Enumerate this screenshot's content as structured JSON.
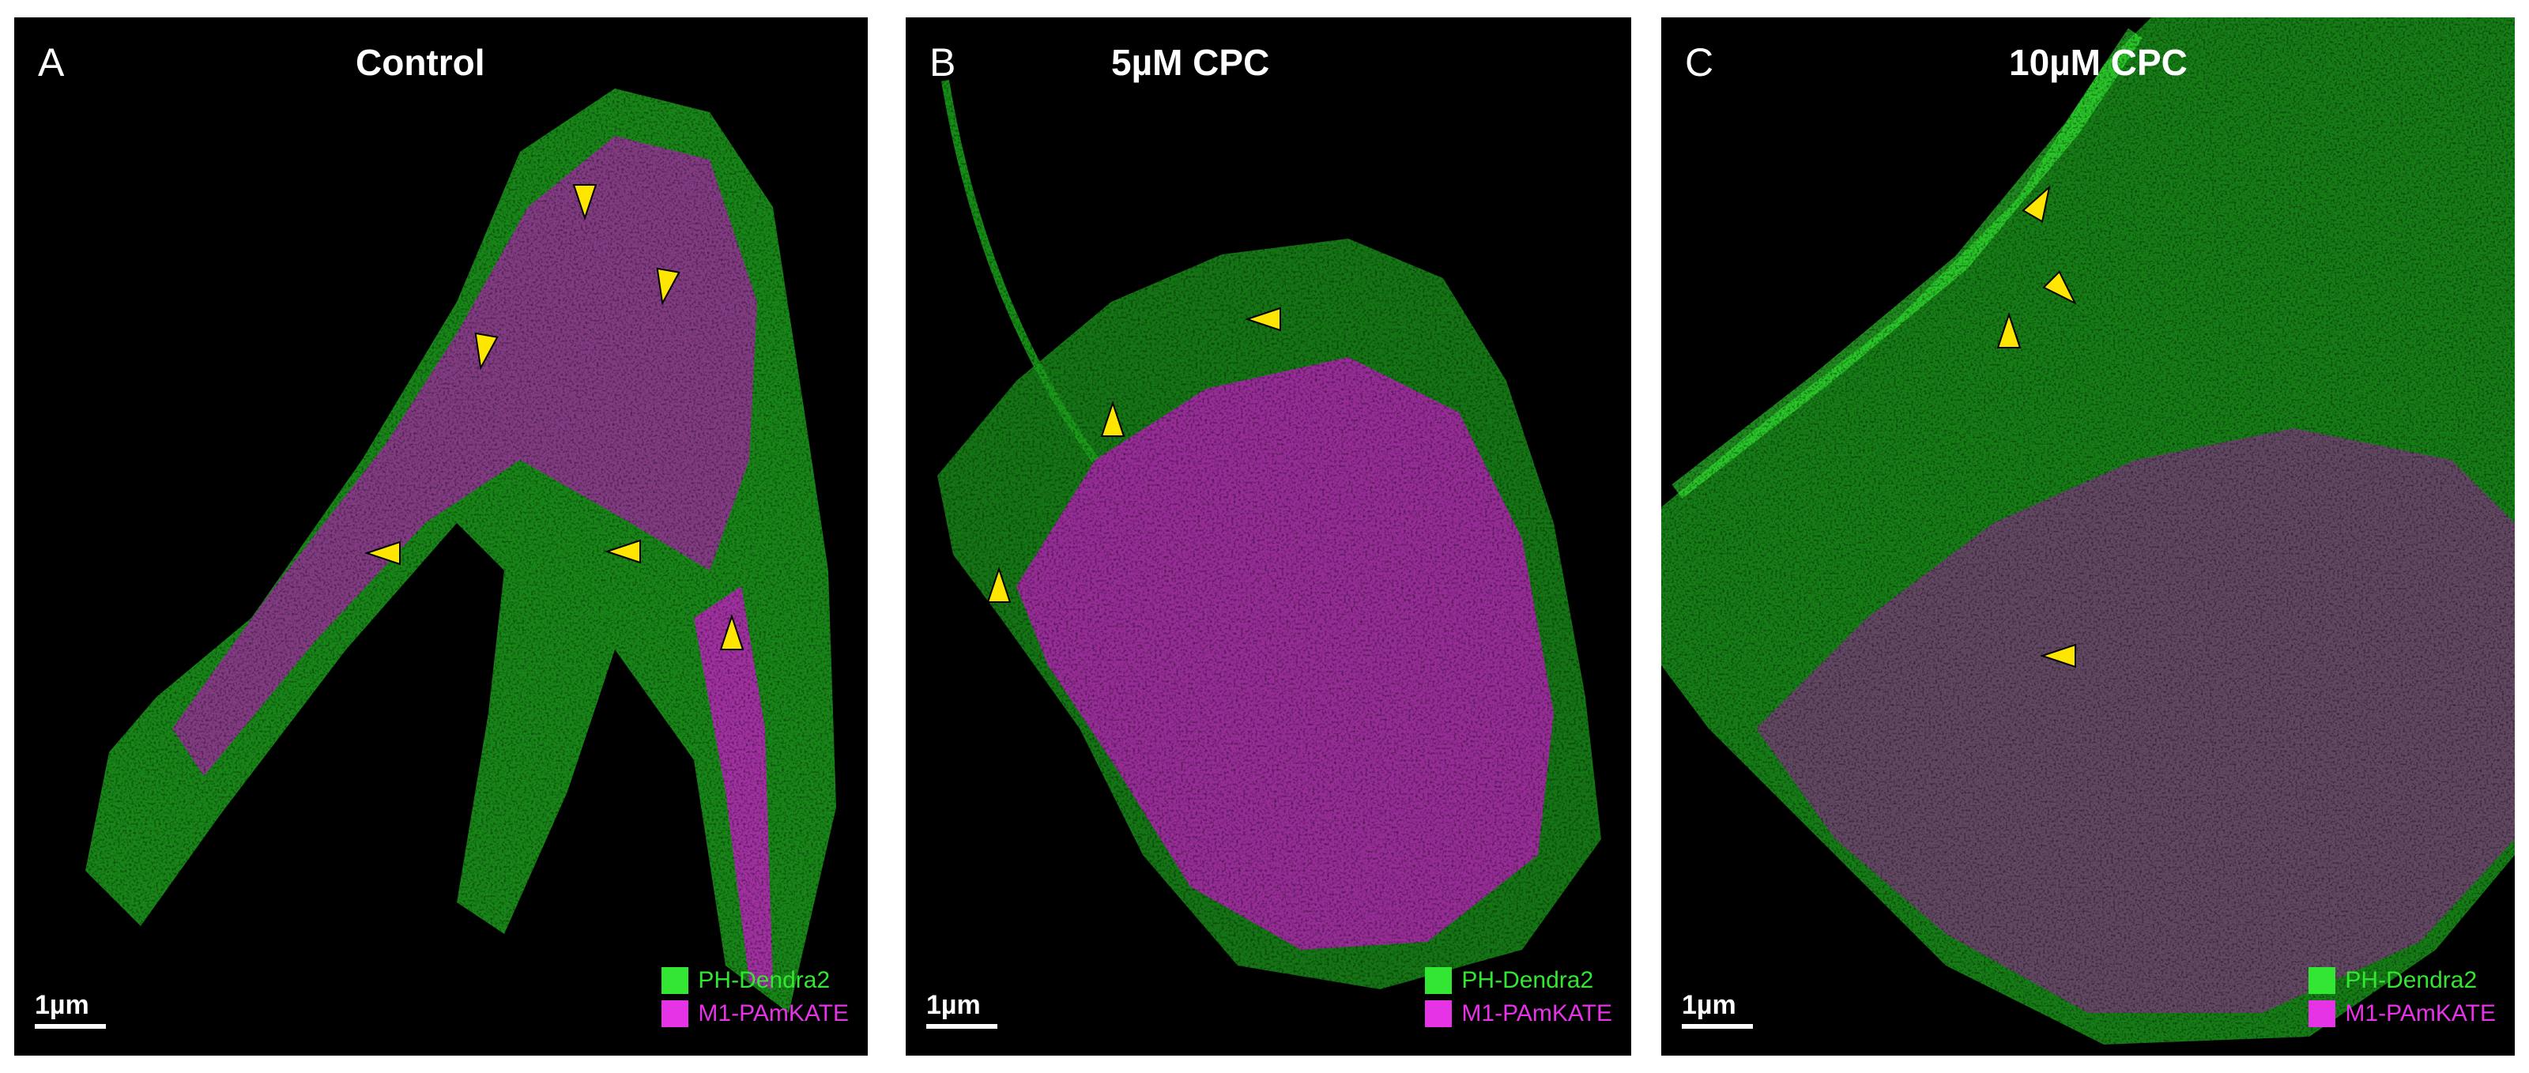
{
  "panels": [
    {
      "id": "a",
      "letter": "A",
      "title": "Control"
    },
    {
      "id": "b",
      "letter": "B",
      "title": "5µM CPC"
    },
    {
      "id": "c",
      "letter": "C",
      "title": "10µM CPC"
    }
  ],
  "scale_bar": {
    "label": "1µm"
  },
  "legend": [
    {
      "label": "PH-Dendra2",
      "color": "#33e633"
    },
    {
      "label": "M1-PAmKATE",
      "color": "#e633e6"
    }
  ],
  "colors": {
    "background": "#000000",
    "arrowhead": "#ffe600",
    "green": "#22cc22",
    "magenta": "#cc22cc",
    "white": "#ffffff"
  }
}
